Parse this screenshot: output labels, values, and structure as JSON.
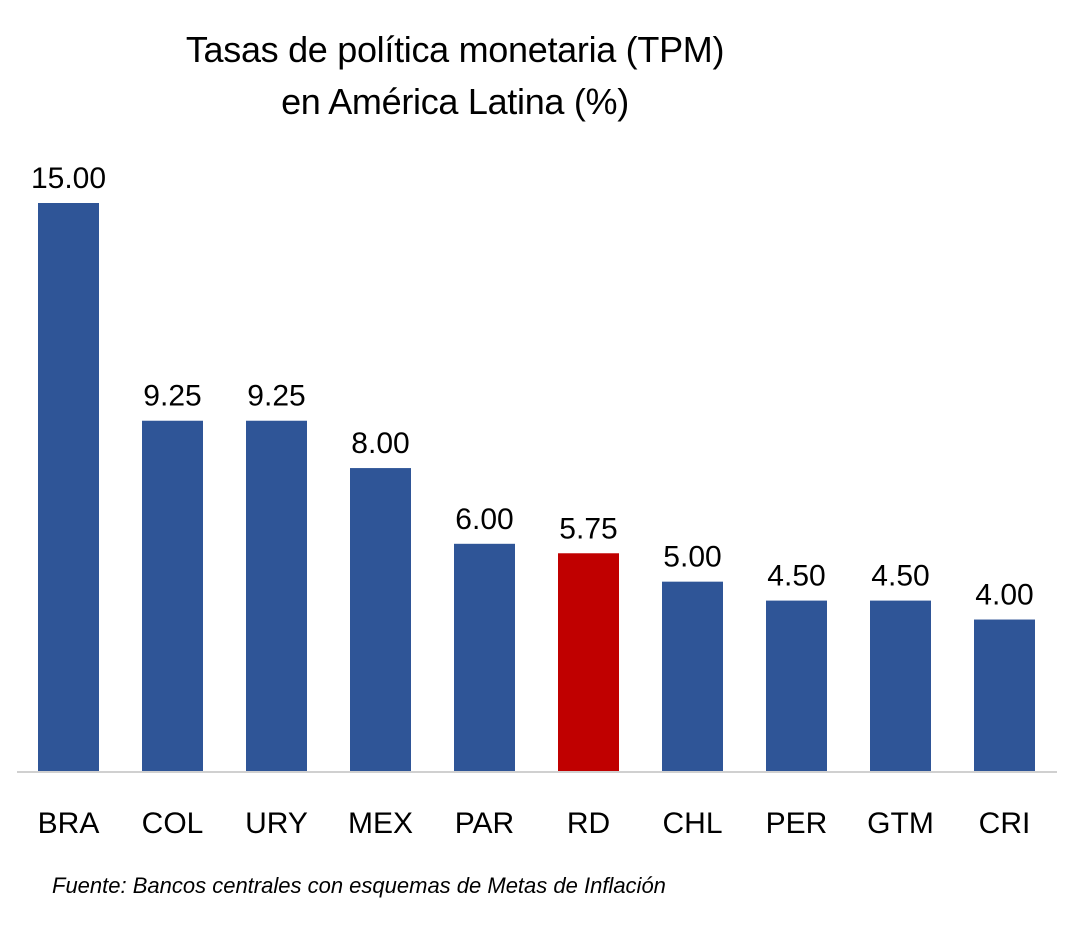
{
  "chart_data": {
    "type": "bar",
    "title": "Tasas de política monetaria (TPM) en América Latina (%)",
    "title_lines": [
      "Tasas de política monetaria (TPM)",
      "en América Latina (%)"
    ],
    "xlabel": "",
    "ylabel": "",
    "ylim": [
      0,
      15
    ],
    "grid": false,
    "legend": "none",
    "categories": [
      "BRA",
      "COL",
      "URY",
      "MEX",
      "PAR",
      "RD",
      "CHL",
      "PER",
      "GTM",
      "CRI"
    ],
    "values": [
      15.0,
      9.25,
      9.25,
      8.0,
      6.0,
      5.75,
      5.0,
      4.5,
      4.5,
      4.0
    ],
    "value_labels": [
      "15.00",
      "9.25",
      "9.25",
      "8.00",
      "6.00",
      "5.75",
      "5.00",
      "4.50",
      "4.50",
      "4.00"
    ],
    "colors": {
      "default": "#2F5597",
      "highlight": "#C00000",
      "axis": "#D0D0D0"
    },
    "highlight_category": "RD",
    "source": "Fuente: Bancos centrales con esquemas de Metas de Inflación"
  }
}
